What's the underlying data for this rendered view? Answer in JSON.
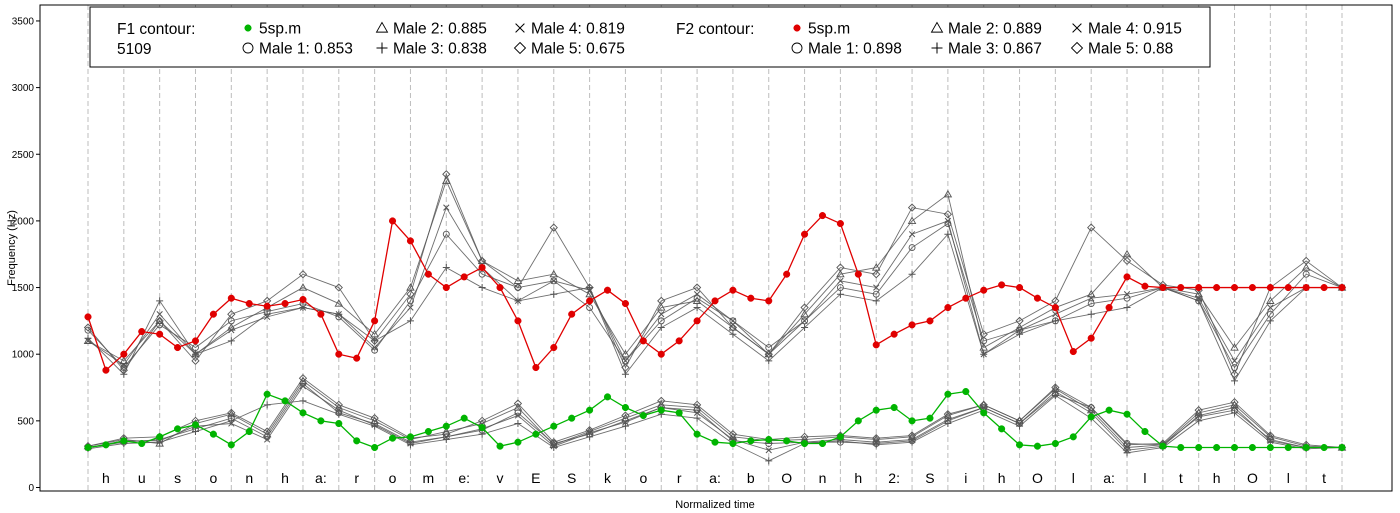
{
  "chart_data": {
    "type": "line",
    "title": "",
    "xlabel": "Normalized time",
    "ylabel": "Frequency (Hz)",
    "ylim": [
      0,
      3600
    ],
    "yticks": [
      0,
      500,
      1000,
      1500,
      2000,
      2500,
      3000,
      3500
    ],
    "grid": "vertical dashed at segment boundaries",
    "legend_position": "top",
    "segments": [
      "h",
      "u",
      "s",
      "o",
      "n",
      "h",
      "a:",
      "r",
      "o",
      "m",
      "e:",
      "v",
      "E",
      "S",
      "k",
      "o",
      "r",
      "a:",
      "b",
      "O",
      "n",
      "h",
      "2:",
      "S",
      "i",
      "h",
      "O",
      "l",
      "a:",
      "l",
      "t",
      "h",
      "O",
      "l",
      "t"
    ],
    "colors": {
      "f1_target": "#00b400",
      "f2_target": "#e00000",
      "others": "#555555"
    },
    "legend": {
      "f1_header": "F1 contour:",
      "f1_header2": "5109",
      "f2_header": "F2 contour:",
      "f1_entries": [
        "5sp.m",
        "Male 1: 0.853",
        "Male 2: 0.885",
        "Male 3: 0.838",
        "Male 4: 0.819",
        "Male 5: 0.675"
      ],
      "f2_entries": [
        "5sp.m",
        "Male 1: 0.898",
        "Male 2: 0.889",
        "Male 3: 0.867",
        "Male 4: 0.915",
        "Male 5: 0.88"
      ],
      "marker_symbols": [
        "filled-circle",
        "open-circle",
        "triangle",
        "plus",
        "cross",
        "diamond"
      ]
    },
    "series": [
      {
        "name": "5sp.m",
        "formant": "F2",
        "marker": "filled-circle",
        "x": [
          0,
          0.5,
          1,
          1.5,
          2,
          2.5,
          3,
          3.5,
          4,
          4.5,
          5,
          5.5,
          6,
          6.5,
          7,
          7.5,
          8,
          8.5,
          9,
          9.5,
          10,
          10.5,
          11,
          11.5,
          12,
          12.5,
          13,
          13.5,
          14,
          14.5,
          15,
          15.5,
          16,
          16.5,
          17,
          17.5,
          18,
          18.5,
          19,
          19.5,
          20,
          20.5,
          21,
          21.5,
          22,
          22.5,
          23,
          23.5,
          24,
          24.5,
          25,
          25.5,
          26,
          26.5,
          27,
          27.5,
          28,
          28.5,
          29,
          29.5,
          30,
          30.5,
          31,
          31.5,
          32,
          32.5,
          33,
          33.5,
          34,
          34.5,
          35
        ],
        "values": [
          1280,
          880,
          1000,
          1170,
          1150,
          1050,
          1100,
          1300,
          1420,
          1380,
          1360,
          1380,
          1410,
          1300,
          1000,
          970,
          1250,
          2000,
          1850,
          1600,
          1500,
          1580,
          1650,
          1500,
          1250,
          900,
          1050,
          1300,
          1400,
          1480,
          1380,
          1100,
          1000,
          1100,
          1250,
          1400,
          1480,
          1420,
          1400,
          1600,
          1900,
          2040,
          1980,
          1600,
          1070,
          1150,
          1220,
          1250,
          1350,
          1420,
          1480,
          1520,
          1500,
          1420,
          1350,
          1020,
          1120,
          1350,
          1580,
          1510,
          1500,
          1500,
          1500,
          1500,
          1500,
          1500,
          1500,
          1500,
          1500,
          1500,
          1500
        ]
      },
      {
        "name": "5sp.m",
        "formant": "F1",
        "marker": "filled-circle",
        "x": [
          0,
          0.5,
          1,
          1.5,
          2,
          2.5,
          3,
          3.5,
          4,
          4.5,
          5,
          5.5,
          6,
          6.5,
          7,
          7.5,
          8,
          8.5,
          9,
          9.5,
          10,
          10.5,
          11,
          11.5,
          12,
          12.5,
          13,
          13.5,
          14,
          14.5,
          15,
          15.5,
          16,
          16.5,
          17,
          17.5,
          18,
          18.5,
          19,
          19.5,
          20,
          20.5,
          21,
          21.5,
          22,
          22.5,
          23,
          23.5,
          24,
          24.5,
          25,
          25.5,
          26,
          26.5,
          27,
          27.5,
          28,
          28.5,
          29,
          29.5,
          30,
          30.5,
          31,
          31.5,
          32,
          32.5,
          33,
          33.5,
          34,
          34.5,
          35
        ],
        "values": [
          300,
          320,
          350,
          330,
          380,
          440,
          470,
          400,
          320,
          420,
          700,
          650,
          560,
          500,
          480,
          350,
          300,
          370,
          380,
          420,
          460,
          520,
          450,
          310,
          340,
          400,
          460,
          520,
          580,
          680,
          600,
          540,
          580,
          560,
          400,
          340,
          330,
          350,
          360,
          350,
          330,
          330,
          380,
          500,
          580,
          600,
          500,
          520,
          700,
          720,
          560,
          440,
          320,
          310,
          330,
          380,
          530,
          580,
          550,
          420,
          310,
          300,
          300,
          300,
          300,
          300,
          300,
          300,
          300,
          300,
          300
        ]
      },
      {
        "name": "Male 1",
        "formant": "F2",
        "marker": "open-circle",
        "x": [
          0,
          1,
          2,
          3,
          4,
          5,
          6,
          7,
          8,
          9,
          10,
          11,
          12,
          13,
          14,
          15,
          16,
          17,
          18,
          19,
          20,
          21,
          22,
          23,
          24,
          25,
          26,
          27,
          28,
          29,
          30,
          31,
          32,
          33,
          34,
          35
        ],
        "values": [
          1180,
          900,
          1220,
          1050,
          1250,
          1320,
          1380,
          1280,
          1030,
          1400,
          1900,
          1600,
          1500,
          1550,
          1350,
          950,
          1250,
          1420,
          1250,
          1050,
          1250,
          1500,
          1450,
          1800,
          1980,
          1100,
          1180,
          1250,
          1380,
          1420,
          1500,
          1400,
          900,
          1300,
          1600,
          1500
        ]
      },
      {
        "name": "Male 2",
        "formant": "F2",
        "marker": "triangle",
        "x": [
          0,
          1,
          2,
          3,
          4,
          5,
          6,
          7,
          8,
          9,
          10,
          11,
          12,
          13,
          14,
          15,
          16,
          17,
          18,
          19,
          20,
          21,
          22,
          23,
          24,
          25,
          26,
          27,
          28,
          29,
          30,
          31,
          32,
          33,
          34,
          35
        ],
        "values": [
          1100,
          950,
          1250,
          1000,
          1200,
          1350,
          1500,
          1380,
          1150,
          1500,
          2300,
          1700,
          1550,
          1600,
          1450,
          1000,
          1350,
          1400,
          1200,
          1000,
          1300,
          1600,
          1650,
          2000,
          2200,
          1050,
          1200,
          1350,
          1450,
          1750,
          1500,
          1450,
          1050,
          1400,
          1650,
          1500
        ]
      },
      {
        "name": "Male 3",
        "formant": "F2",
        "marker": "plus",
        "x": [
          0,
          1,
          2,
          3,
          4,
          5,
          6,
          7,
          8,
          9,
          10,
          11,
          12,
          13,
          14,
          15,
          16,
          17,
          18,
          19,
          20,
          21,
          22,
          23,
          24,
          25,
          26,
          27,
          28,
          29,
          30,
          31,
          32,
          33,
          34,
          35
        ],
        "values": [
          1120,
          850,
          1400,
          1000,
          1100,
          1300,
          1350,
          1300,
          1100,
          1250,
          1650,
          1500,
          1400,
          1450,
          1500,
          850,
          1200,
          1350,
          1150,
          950,
          1200,
          1450,
          1400,
          1600,
          1900,
          1000,
          1150,
          1250,
          1300,
          1350,
          1500,
          1400,
          800,
          1250,
          1500,
          1500
        ]
      },
      {
        "name": "Male 4",
        "formant": "F2",
        "marker": "cross",
        "x": [
          0,
          1,
          2,
          3,
          4,
          5,
          6,
          7,
          8,
          9,
          10,
          11,
          12,
          13,
          14,
          15,
          16,
          17,
          18,
          19,
          20,
          21,
          22,
          23,
          24,
          25,
          26,
          27,
          28,
          29,
          30,
          31,
          32,
          33,
          34,
          35
        ],
        "values": [
          1100,
          920,
          1300,
          1000,
          1180,
          1280,
          1350,
          1300,
          1050,
          1350,
          2100,
          1650,
          1400,
          1550,
          1480,
          950,
          1300,
          1450,
          1250,
          1000,
          1250,
          1550,
          1500,
          1900,
          2000,
          1000,
          1180,
          1300,
          1420,
          1450,
          1500,
          1420,
          950,
          1350,
          1500,
          1500
        ]
      },
      {
        "name": "Male 5",
        "formant": "F2",
        "marker": "diamond",
        "x": [
          0,
          1,
          2,
          3,
          4,
          5,
          6,
          7,
          8,
          9,
          10,
          11,
          12,
          13,
          14,
          15,
          16,
          17,
          18,
          19,
          20,
          21,
          22,
          23,
          24,
          25,
          26,
          27,
          28,
          29,
          30,
          31,
          32,
          33,
          34,
          35
        ],
        "values": [
          1200,
          880,
          1250,
          950,
          1300,
          1400,
          1600,
          1500,
          1100,
          1450,
          2350,
          1700,
          1500,
          1950,
          1500,
          900,
          1400,
          1500,
          1200,
          1000,
          1350,
          1650,
          1600,
          2100,
          2050,
          1150,
          1250,
          1400,
          1950,
          1700,
          1520,
          1480,
          850,
          1500,
          1700,
          1500
        ]
      },
      {
        "name": "Male 1",
        "formant": "F1",
        "marker": "open-circle",
        "x": [
          0,
          1,
          2,
          3,
          4,
          5,
          6,
          7,
          8,
          9,
          10,
          11,
          12,
          13,
          14,
          15,
          16,
          17,
          18,
          19,
          20,
          21,
          22,
          23,
          24,
          25,
          26,
          27,
          28,
          29,
          30,
          31,
          32,
          33,
          34,
          35
        ],
        "values": [
          300,
          340,
          360,
          440,
          520,
          380,
          780,
          560,
          480,
          340,
          380,
          430,
          560,
          330,
          400,
          500,
          600,
          580,
          350,
          330,
          340,
          340,
          330,
          350,
          500,
          600,
          480,
          700,
          600,
          330,
          320,
          530,
          580,
          360,
          300,
          300
        ]
      },
      {
        "name": "Male 2",
        "formant": "F1",
        "marker": "triangle",
        "x": [
          0,
          1,
          2,
          3,
          4,
          5,
          6,
          7,
          8,
          9,
          10,
          11,
          12,
          13,
          14,
          15,
          16,
          17,
          18,
          19,
          20,
          21,
          22,
          23,
          24,
          25,
          26,
          27,
          28,
          29,
          30,
          31,
          32,
          33,
          34,
          35
        ],
        "values": [
          310,
          360,
          330,
          480,
          550,
          400,
          800,
          600,
          500,
          360,
          420,
          480,
          600,
          320,
          420,
          520,
          620,
          600,
          380,
          350,
          360,
          380,
          360,
          380,
          540,
          620,
          500,
          740,
          580,
          300,
          320,
          560,
          620,
          380,
          310,
          300
        ]
      },
      {
        "name": "Male 3",
        "formant": "F1",
        "marker": "plus",
        "x": [
          0,
          1,
          2,
          3,
          4,
          5,
          6,
          7,
          8,
          9,
          10,
          11,
          12,
          13,
          14,
          15,
          16,
          17,
          18,
          19,
          20,
          21,
          22,
          23,
          24,
          25,
          26,
          27,
          28,
          29,
          30,
          31,
          32,
          33,
          34,
          35
        ],
        "values": [
          290,
          330,
          340,
          420,
          500,
          620,
          650,
          550,
          460,
          320,
          360,
          400,
          480,
          300,
          380,
          460,
          550,
          520,
          330,
          200,
          330,
          350,
          320,
          340,
          480,
          580,
          460,
          690,
          520,
          260,
          300,
          500,
          560,
          340,
          290,
          300
        ]
      },
      {
        "name": "Male 4",
        "formant": "F1",
        "marker": "cross",
        "x": [
          0,
          1,
          2,
          3,
          4,
          5,
          6,
          7,
          8,
          9,
          10,
          11,
          12,
          13,
          14,
          15,
          16,
          17,
          18,
          19,
          20,
          21,
          22,
          23,
          24,
          25,
          26,
          27,
          28,
          29,
          30,
          31,
          32,
          33,
          34,
          35
        ],
        "values": [
          300,
          350,
          350,
          460,
          480,
          360,
          760,
          580,
          470,
          330,
          380,
          440,
          540,
          310,
          410,
          490,
          600,
          560,
          360,
          280,
          340,
          360,
          340,
          360,
          510,
          600,
          480,
          720,
          560,
          280,
          310,
          540,
          600,
          350,
          300,
          300
        ]
      },
      {
        "name": "Male 5",
        "formant": "F1",
        "marker": "diamond",
        "x": [
          0,
          1,
          2,
          3,
          4,
          5,
          6,
          7,
          8,
          9,
          10,
          11,
          12,
          13,
          14,
          15,
          16,
          17,
          18,
          19,
          20,
          21,
          22,
          23,
          24,
          25,
          26,
          27,
          28,
          29,
          30,
          31,
          32,
          33,
          34,
          35
        ],
        "values": [
          310,
          370,
          380,
          500,
          560,
          420,
          820,
          620,
          520,
          370,
          400,
          500,
          630,
          340,
          430,
          540,
          650,
          620,
          400,
          360,
          380,
          390,
          370,
          390,
          550,
          620,
          500,
          750,
          600,
          320,
          330,
          580,
          640,
          390,
          320,
          300
        ]
      }
    ]
  }
}
